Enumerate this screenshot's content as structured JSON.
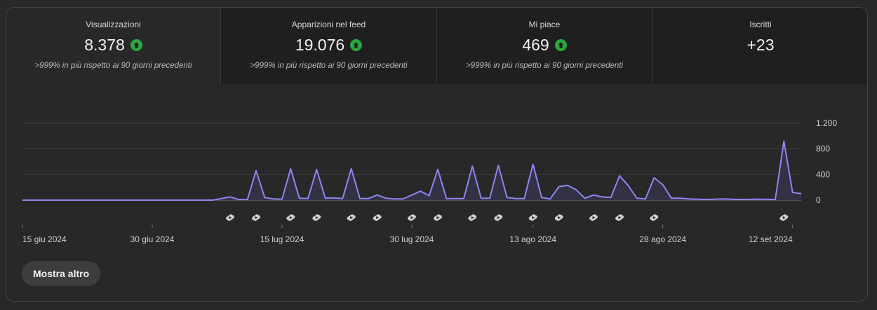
{
  "metrics": [
    {
      "label": "Visualizzazioni",
      "value": "8.378",
      "trend": "up",
      "sub": ">999% in più rispetto ai 90 giorni precedenti",
      "active": true
    },
    {
      "label": "Apparizioni nel feed",
      "value": "19.076",
      "trend": "up",
      "sub": ">999% in più rispetto ai 90 giorni precedenti",
      "active": false
    },
    {
      "label": "Mi piace",
      "value": "469",
      "trend": "up",
      "sub": ">999% in più rispetto ai 90 giorni precedenti",
      "active": false
    },
    {
      "label": "Iscritti",
      "value": "+23",
      "trend": "none",
      "sub": "",
      "active": false
    }
  ],
  "colors": {
    "line": "#8d86f0",
    "fill": "#343247",
    "up_badge": "#2ba640",
    "background": "#282828"
  },
  "chart_data": {
    "type": "area",
    "title": "",
    "xlabel": "",
    "ylabel": "",
    "ylim": [
      0,
      1200
    ],
    "yticks": [
      0,
      400,
      800,
      1200
    ],
    "ytick_labels": [
      "0",
      "400",
      "800",
      "1.200"
    ],
    "y_axis_position": "right",
    "grid": true,
    "x_start": "2024-06-15",
    "x_end": "2024-09-13",
    "xtick_labels": [
      {
        "date": "2024-06-15",
        "label": "15 giu 2024"
      },
      {
        "date": "2024-06-30",
        "label": "30 giu 2024"
      },
      {
        "date": "2024-07-15",
        "label": "15 lug 2024"
      },
      {
        "date": "2024-07-30",
        "label": "30 lug 2024"
      },
      {
        "date": "2024-08-13",
        "label": "13 ago 2024"
      },
      {
        "date": "2024-08-28",
        "label": "28 ago 2024"
      },
      {
        "date": "2024-09-12",
        "label": "12 set 2024"
      }
    ],
    "series": [
      {
        "values": [
          {
            "x": "2024-06-15",
            "y": 0
          },
          {
            "x": "2024-07-07",
            "y": 0
          },
          {
            "x": "2024-07-09",
            "y": 50
          },
          {
            "x": "2024-07-10",
            "y": 10
          },
          {
            "x": "2024-07-11",
            "y": 10
          },
          {
            "x": "2024-07-12",
            "y": 460
          },
          {
            "x": "2024-07-13",
            "y": 40
          },
          {
            "x": "2024-07-14",
            "y": 20
          },
          {
            "x": "2024-07-15",
            "y": 15
          },
          {
            "x": "2024-07-16",
            "y": 490
          },
          {
            "x": "2024-07-17",
            "y": 30
          },
          {
            "x": "2024-07-18",
            "y": 25
          },
          {
            "x": "2024-07-19",
            "y": 480
          },
          {
            "x": "2024-07-20",
            "y": 30
          },
          {
            "x": "2024-07-21",
            "y": 35
          },
          {
            "x": "2024-07-22",
            "y": 25
          },
          {
            "x": "2024-07-23",
            "y": 490
          },
          {
            "x": "2024-07-24",
            "y": 25
          },
          {
            "x": "2024-07-25",
            "y": 25
          },
          {
            "x": "2024-07-26",
            "y": 80
          },
          {
            "x": "2024-07-27",
            "y": 30
          },
          {
            "x": "2024-07-28",
            "y": 20
          },
          {
            "x": "2024-07-29",
            "y": 20
          },
          {
            "x": "2024-07-31",
            "y": 140
          },
          {
            "x": "2024-08-01",
            "y": 70
          },
          {
            "x": "2024-08-02",
            "y": 480
          },
          {
            "x": "2024-08-03",
            "y": 25
          },
          {
            "x": "2024-08-04",
            "y": 25
          },
          {
            "x": "2024-08-05",
            "y": 25
          },
          {
            "x": "2024-08-06",
            "y": 530
          },
          {
            "x": "2024-08-07",
            "y": 30
          },
          {
            "x": "2024-08-08",
            "y": 30
          },
          {
            "x": "2024-08-09",
            "y": 540
          },
          {
            "x": "2024-08-10",
            "y": 40
          },
          {
            "x": "2024-08-11",
            "y": 25
          },
          {
            "x": "2024-08-12",
            "y": 25
          },
          {
            "x": "2024-08-13",
            "y": 560
          },
          {
            "x": "2024-08-14",
            "y": 40
          },
          {
            "x": "2024-08-15",
            "y": 20
          },
          {
            "x": "2024-08-16",
            "y": 210
          },
          {
            "x": "2024-08-17",
            "y": 230
          },
          {
            "x": "2024-08-18",
            "y": 160
          },
          {
            "x": "2024-08-19",
            "y": 30
          },
          {
            "x": "2024-08-20",
            "y": 80
          },
          {
            "x": "2024-08-21",
            "y": 50
          },
          {
            "x": "2024-08-22",
            "y": 40
          },
          {
            "x": "2024-08-23",
            "y": 380
          },
          {
            "x": "2024-08-24",
            "y": 230
          },
          {
            "x": "2024-08-25",
            "y": 30
          },
          {
            "x": "2024-08-26",
            "y": 20
          },
          {
            "x": "2024-08-27",
            "y": 350
          },
          {
            "x": "2024-08-28",
            "y": 240
          },
          {
            "x": "2024-08-29",
            "y": 30
          },
          {
            "x": "2024-08-30",
            "y": 30
          },
          {
            "x": "2024-08-31",
            "y": 20
          },
          {
            "x": "2024-09-02",
            "y": 10
          },
          {
            "x": "2024-09-04",
            "y": 20
          },
          {
            "x": "2024-09-06",
            "y": 10
          },
          {
            "x": "2024-09-08",
            "y": 15
          },
          {
            "x": "2024-09-10",
            "y": 10
          },
          {
            "x": "2024-09-11",
            "y": 920
          },
          {
            "x": "2024-09-12",
            "y": 120
          },
          {
            "x": "2024-09-13",
            "y": 100
          }
        ]
      }
    ],
    "shorts_markers": [
      "2024-07-09",
      "2024-07-12",
      "2024-07-16",
      "2024-07-19",
      "2024-07-23",
      "2024-07-26",
      "2024-07-30",
      "2024-08-02",
      "2024-08-06",
      "2024-08-09",
      "2024-08-13",
      "2024-08-16",
      "2024-08-20",
      "2024-08-23",
      "2024-08-27",
      "2024-09-11"
    ]
  },
  "button": {
    "label": "Mostra altro"
  }
}
